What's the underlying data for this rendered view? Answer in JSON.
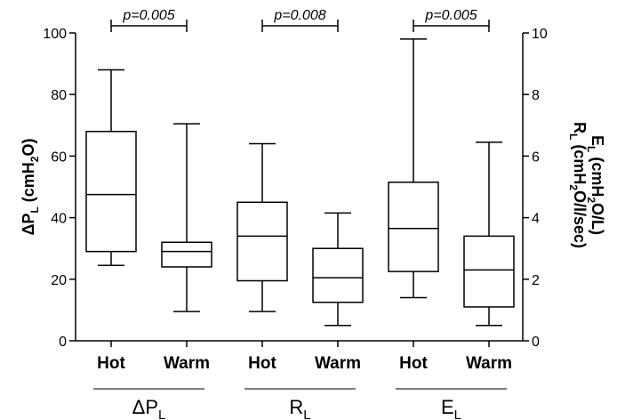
{
  "chart_data": {
    "type": "box",
    "categories": [
      "Hot",
      "Warm",
      "Hot",
      "Warm",
      "Hot",
      "Warm"
    ],
    "groups": [
      {
        "label_main": "ΔP",
        "label_sub": "L",
        "axis": "left",
        "boxes": [
          0,
          1
        ]
      },
      {
        "label_main": "R",
        "label_sub": "L",
        "axis": "right",
        "boxes": [
          2,
          3
        ]
      },
      {
        "label_main": "E",
        "label_sub": "L",
        "axis": "right",
        "boxes": [
          4,
          5
        ]
      }
    ],
    "boxes": [
      {
        "category": "Hot",
        "axis": "left",
        "min": 24.5,
        "q1": 29,
        "median": 47.5,
        "q3": 68,
        "max": 88
      },
      {
        "category": "Warm",
        "axis": "left",
        "min": 9.5,
        "q1": 24,
        "median": 29,
        "q3": 32,
        "max": 70.5
      },
      {
        "category": "Hot",
        "axis": "right",
        "min": 0.95,
        "q1": 1.95,
        "median": 3.4,
        "q3": 4.5,
        "max": 6.4
      },
      {
        "category": "Warm",
        "axis": "right",
        "min": 0.5,
        "q1": 1.25,
        "median": 2.05,
        "q3": 3.0,
        "max": 4.15
      },
      {
        "category": "Hot",
        "axis": "right",
        "min": 1.4,
        "q1": 2.25,
        "median": 3.65,
        "q3": 5.15,
        "max": 9.8
      },
      {
        "category": "Warm",
        "axis": "right",
        "min": 0.5,
        "q1": 1.1,
        "median": 2.3,
        "q3": 3.4,
        "max": 6.45
      }
    ],
    "comparisons": [
      {
        "between": [
          0,
          1
        ],
        "label": "p=0.005"
      },
      {
        "between": [
          2,
          3
        ],
        "label": "p=0.008"
      },
      {
        "between": [
          4,
          5
        ],
        "label": "p=0.005"
      }
    ],
    "y_left": {
      "label_parts": [
        "ΔP",
        "L",
        " (cmH",
        "2",
        "O)"
      ],
      "ylim": [
        0,
        100
      ],
      "ticks": [
        0,
        20,
        40,
        60,
        80,
        100
      ]
    },
    "y_right": {
      "label_line1_parts": [
        "R",
        "L",
        " (cmH",
        "2",
        "O/l/sec)"
      ],
      "label_line2_parts": [
        "E",
        "L",
        " (cmH",
        "2",
        "O/L)"
      ],
      "ylim": [
        0,
        10
      ],
      "ticks": [
        0,
        2,
        4,
        6,
        8,
        10
      ]
    },
    "grid": false
  }
}
